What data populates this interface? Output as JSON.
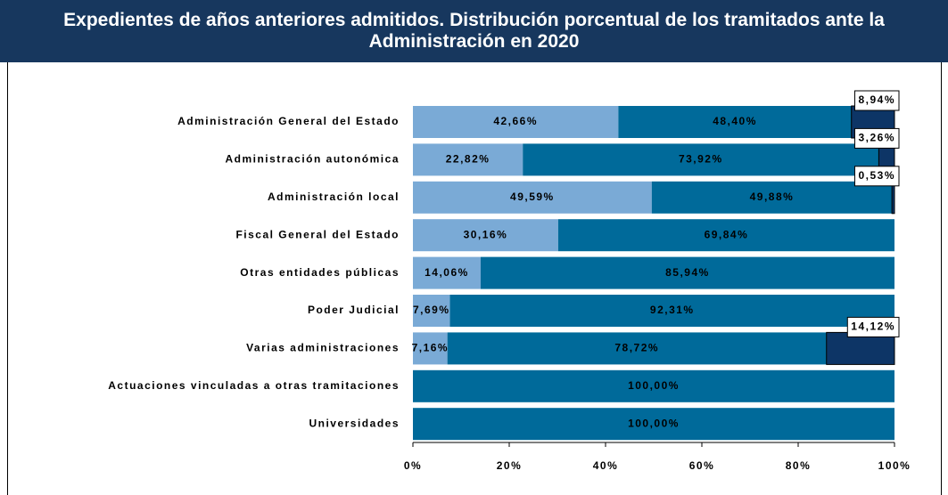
{
  "chart_data": {
    "type": "stacked-barh",
    "title": "Expedientes de años anteriores admitidos. Distribución porcentual de los tramitados ante la Administración en 2020",
    "categories": [
      "Administración General del Estado",
      "Administración autonómica",
      "Administración local",
      "Fiscal General del Estado",
      "Otras entidades públicas",
      "Poder Judicial",
      "Varias administraciones",
      "Actuaciones vinculadas a otras tramitaciones",
      "Universidades"
    ],
    "series": [
      {
        "color": "#7aaad6",
        "values": [
          42.66,
          22.82,
          49.59,
          30.16,
          14.06,
          7.69,
          7.16,
          null,
          null
        ],
        "value_labels": [
          "42,66%",
          "22,82%",
          "49,59%",
          "30,16%",
          "14,06%",
          "7,69%",
          "7,16%",
          null,
          null
        ]
      },
      {
        "color": "#006a9a",
        "values": [
          48.4,
          73.92,
          49.88,
          69.84,
          85.94,
          92.31,
          78.72,
          100.0,
          100.0
        ],
        "value_labels": [
          "48,40%",
          "73,92%",
          "49,88%",
          "69,84%",
          "85,94%",
          "92,31%",
          "78,72%",
          "100,00%",
          "100,00%"
        ]
      },
      {
        "color": "#0d3566",
        "values": [
          8.94,
          3.26,
          0.53,
          null,
          null,
          null,
          14.12,
          null,
          null
        ],
        "value_labels": [
          "8,94%",
          "3,26%",
          "0,53%",
          null,
          null,
          null,
          "14,12%",
          null,
          null
        ]
      }
    ],
    "xlim": [
      0,
      100
    ],
    "xticks": [
      {
        "value": 0,
        "label": "0%"
      },
      {
        "value": 20,
        "label": "20%"
      },
      {
        "value": 40,
        "label": "40%"
      },
      {
        "value": 60,
        "label": "60%"
      },
      {
        "value": 80,
        "label": "80%"
      },
      {
        "value": 100,
        "label": "100%"
      }
    ]
  }
}
